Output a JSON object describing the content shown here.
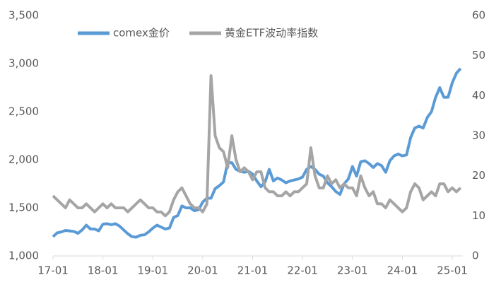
{
  "chart_data": {
    "type": "line",
    "categories": [
      "17-01",
      null,
      null,
      null,
      null,
      null,
      null,
      null,
      null,
      null,
      null,
      null,
      "18-01",
      null,
      null,
      null,
      null,
      null,
      null,
      null,
      null,
      null,
      null,
      null,
      "19-01",
      null,
      null,
      null,
      null,
      null,
      null,
      null,
      null,
      null,
      null,
      null,
      "20-01",
      null,
      null,
      null,
      null,
      null,
      null,
      null,
      null,
      null,
      null,
      null,
      "21-01",
      null,
      null,
      null,
      null,
      null,
      null,
      null,
      null,
      null,
      null,
      null,
      "22-01",
      null,
      null,
      null,
      null,
      null,
      null,
      null,
      null,
      null,
      null,
      null,
      "23-01",
      null,
      null,
      null,
      null,
      null,
      null,
      null,
      null,
      null,
      null,
      null,
      "24-01",
      null,
      null,
      null,
      null,
      null,
      null,
      null,
      null,
      null,
      null,
      null,
      "25-01",
      null,
      null
    ],
    "series": [
      {
        "name": "comex金价",
        "color": "#5b9bd5",
        "axis": "y",
        "values": [
          1200,
          1240,
          1250,
          1265,
          1260,
          1255,
          1235,
          1270,
          1320,
          1280,
          1280,
          1260,
          1330,
          1335,
          1325,
          1335,
          1310,
          1270,
          1230,
          1200,
          1195,
          1215,
          1220,
          1250,
          1290,
          1320,
          1300,
          1280,
          1290,
          1400,
          1420,
          1520,
          1500,
          1500,
          1470,
          1480,
          1560,
          1600,
          1600,
          1700,
          1730,
          1770,
          1970,
          1970,
          1900,
          1880,
          1870,
          1880,
          1850,
          1780,
          1720,
          1770,
          1900,
          1780,
          1810,
          1790,
          1760,
          1780,
          1790,
          1800,
          1820,
          1900,
          1930,
          1900,
          1850,
          1830,
          1760,
          1720,
          1670,
          1640,
          1750,
          1800,
          1930,
          1830,
          1980,
          1990,
          1960,
          1920,
          1960,
          1940,
          1870,
          1990,
          2040,
          2060,
          2040,
          2050,
          2230,
          2330,
          2350,
          2330,
          2440,
          2500,
          2650,
          2750,
          2650,
          2650,
          2800,
          2900,
          2950
        ]
      },
      {
        "name": "黄金ETF波动率指数",
        "color": "#a5a5a5",
        "axis": "y2",
        "values": [
          15,
          14,
          13,
          12,
          14,
          13,
          12,
          12,
          13,
          12,
          11,
          12,
          13,
          12,
          13,
          12,
          12,
          12,
          11,
          12,
          13,
          14,
          13,
          12,
          12,
          11,
          11,
          10,
          11,
          14,
          16,
          17,
          15,
          13,
          12,
          12,
          11,
          13,
          45,
          30,
          27,
          26,
          22,
          30,
          24,
          21,
          22,
          21,
          19,
          21,
          21,
          17,
          16,
          16,
          15,
          15,
          16,
          15,
          16,
          16,
          17,
          18,
          27,
          20,
          17,
          17,
          20,
          18,
          19,
          17,
          18,
          17,
          17,
          15,
          20,
          17,
          15,
          16,
          13,
          13,
          12,
          14,
          13,
          12,
          11,
          12,
          16,
          18,
          17,
          14,
          15,
          16,
          15,
          18,
          18,
          16,
          17,
          16,
          17
        ]
      }
    ],
    "ylim": [
      1000,
      3500
    ],
    "yticks": [
      {
        "value": 1000,
        "label": "1,000"
      },
      {
        "value": 1500,
        "label": "1,500"
      },
      {
        "value": 2000,
        "label": "2,000"
      },
      {
        "value": 2500,
        "label": "2,500"
      },
      {
        "value": 3000,
        "label": "3,000"
      },
      {
        "value": 3500,
        "label": "3,500"
      }
    ],
    "y2lim": [
      0,
      60
    ],
    "y2ticks": [
      0,
      10,
      20,
      30,
      40,
      50,
      60
    ],
    "legend": "top"
  }
}
